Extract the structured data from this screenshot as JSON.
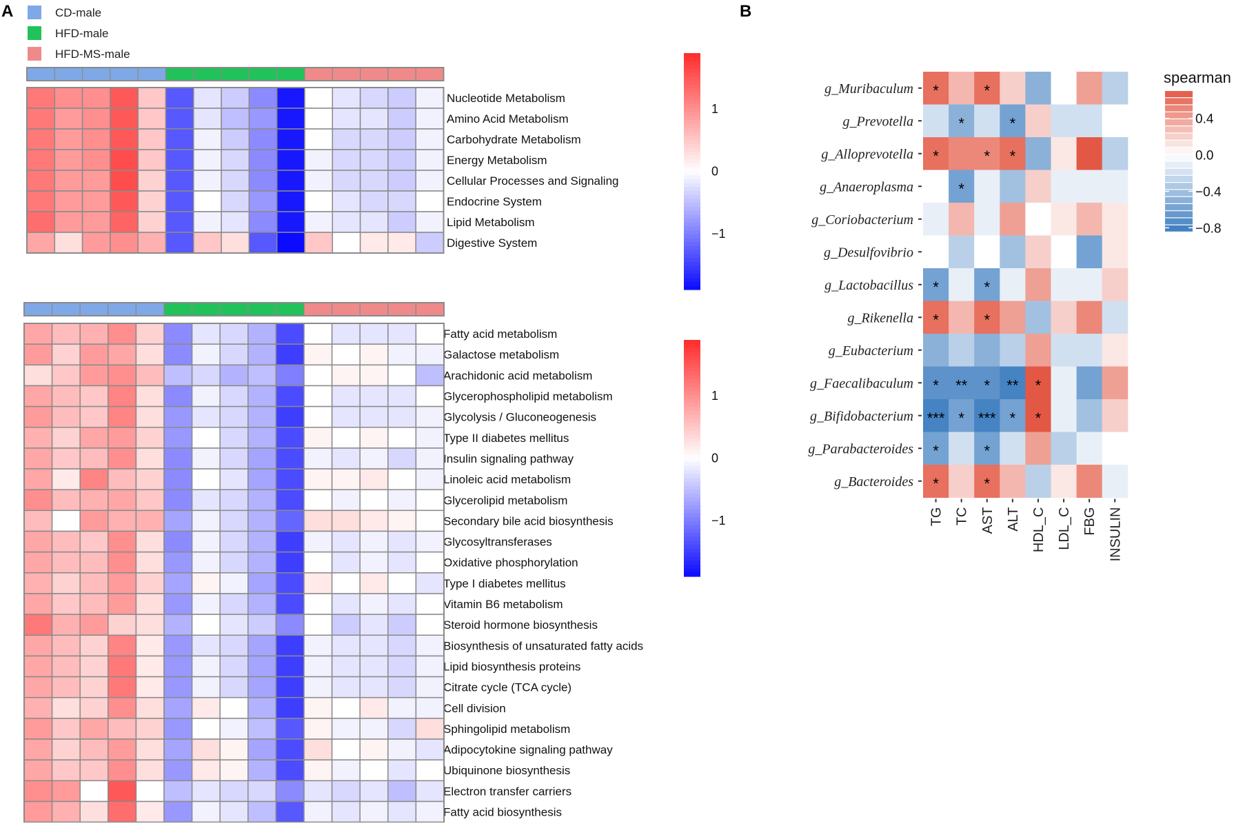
{
  "panel_labels": {
    "a": "A",
    "b": "B"
  },
  "colors": {
    "low": "#0b0bff",
    "mid": "#ffffff",
    "high": "#ff2b2b",
    "group_cd": "#7fa8e6",
    "group_hfd": "#22c25a",
    "group_hfdms": "#f08a8a",
    "cell_border": "#8a8a8a",
    "corr_neg": "#3a7bbf",
    "corr_pos": "#e35844"
  },
  "legend": [
    {
      "label": "CD-male",
      "color": "#7fa8e6"
    },
    {
      "label": "HFD-male",
      "color": "#22c25a"
    },
    {
      "label": "HFD-MS-male",
      "color": "#f08a8a"
    }
  ],
  "chart_data": [
    {
      "id": "heatmap_top",
      "type": "heatmap",
      "title": "",
      "column_groups": [
        "CD-male",
        "CD-male",
        "CD-male",
        "CD-male",
        "CD-male",
        "HFD-male",
        "HFD-male",
        "HFD-male",
        "HFD-male",
        "HFD-male",
        "HFD-MS-male",
        "HFD-MS-male",
        "HFD-MS-male",
        "HFD-MS-male",
        "HFD-MS-male"
      ],
      "rows": [
        "Nucleotide Metabolism",
        "Amino Acid Metabolism",
        "Carbohydrate Metabolism",
        "Energy Metabolism",
        "Cellular Processes and Signaling",
        "Endocrine System",
        "Lipid Metabolism",
        "Digestive System"
      ],
      "values": [
        [
          1.2,
          1.0,
          1.0,
          1.5,
          0.5,
          -1.3,
          -0.2,
          -0.4,
          -0.9,
          -1.8,
          0.0,
          -0.2,
          -0.3,
          -0.4,
          -0.1
        ],
        [
          1.2,
          0.9,
          1.0,
          1.5,
          0.5,
          -1.3,
          -0.2,
          -0.5,
          -0.8,
          -1.8,
          0.0,
          -0.2,
          -0.2,
          -0.4,
          -0.1
        ],
        [
          1.2,
          0.9,
          1.0,
          1.5,
          0.5,
          -1.3,
          -0.1,
          -0.4,
          -0.9,
          -1.8,
          0.0,
          -0.3,
          -0.3,
          -0.4,
          -0.1
        ],
        [
          1.2,
          0.9,
          1.0,
          1.6,
          0.5,
          -1.3,
          -0.1,
          -0.3,
          -0.9,
          -1.8,
          -0.1,
          -0.3,
          -0.3,
          -0.4,
          -0.1
        ],
        [
          1.2,
          0.9,
          0.9,
          1.6,
          0.4,
          -1.3,
          -0.1,
          -0.3,
          -0.9,
          -1.8,
          -0.1,
          -0.3,
          -0.3,
          -0.4,
          -0.1
        ],
        [
          1.2,
          0.9,
          0.9,
          1.5,
          0.4,
          -1.3,
          0.0,
          -0.3,
          -0.8,
          -1.8,
          0.0,
          -0.2,
          -0.3,
          -0.3,
          0.0
        ],
        [
          1.3,
          0.9,
          0.9,
          1.4,
          0.4,
          -1.3,
          -0.1,
          -0.2,
          -0.9,
          -1.8,
          -0.1,
          -0.2,
          -0.2,
          -0.4,
          -0.1
        ],
        [
          0.8,
          0.3,
          0.9,
          1.0,
          0.7,
          -1.3,
          0.5,
          0.3,
          -1.3,
          -1.9,
          0.5,
          0.0,
          0.2,
          0.2,
          -0.4
        ]
      ],
      "colorbar": {
        "ticks": [
          1,
          0,
          -1
        ],
        "tick_labels": [
          "1",
          "0",
          "−1"
        ],
        "range": [
          -1.9,
          1.9
        ]
      }
    },
    {
      "id": "heatmap_bottom",
      "type": "heatmap",
      "title": "",
      "column_groups": [
        "CD-male",
        "CD-male",
        "CD-male",
        "CD-male",
        "CD-male",
        "HFD-male",
        "HFD-male",
        "HFD-male",
        "HFD-male",
        "HFD-male",
        "HFD-MS-male",
        "HFD-MS-male",
        "HFD-MS-male",
        "HFD-MS-male",
        "HFD-MS-male"
      ],
      "rows": [
        "Fatty acid metabolism",
        "Galactose metabolism",
        "Arachidonic acid metabolism",
        "Glycerophospholipid metabolism",
        "Glycolysis / Gluconeogenesis",
        "Type II diabetes mellitus",
        "Insulin signaling pathway",
        "Linoleic acid metabolism",
        "Glycerolipid metabolism",
        "Secondary bile acid biosynthesis",
        "Glycosyltransferases",
        "Oxidative phosphorylation",
        "Type I diabetes mellitus",
        "Vitamin B6 metabolism",
        "Steroid hormone biosynthesis",
        "Biosynthesis of unsaturated fatty acids",
        "Lipid biosynthesis proteins",
        "Citrate cycle (TCA cycle)",
        "Cell division",
        "Sphingolipid metabolism",
        "Adipocytokine signaling pathway",
        "Ubiquinone biosynthesis",
        "Electron transfer carriers",
        "Fatty acid biosynthesis"
      ],
      "values": [
        [
          0.8,
          0.6,
          0.7,
          1.0,
          0.4,
          -0.9,
          -0.2,
          -0.3,
          -0.6,
          -1.4,
          0.0,
          -0.2,
          -0.2,
          -0.2,
          0.0
        ],
        [
          0.9,
          0.4,
          0.9,
          0.8,
          0.3,
          -0.9,
          -0.1,
          -0.3,
          -0.6,
          -1.5,
          0.1,
          0.0,
          0.1,
          -0.1,
          -0.1
        ],
        [
          0.3,
          0.5,
          0.9,
          1.0,
          0.6,
          -0.5,
          -0.3,
          -0.6,
          -0.5,
          -1.0,
          0.0,
          0.1,
          0.1,
          0.0,
          -0.5
        ],
        [
          0.8,
          0.6,
          0.5,
          1.1,
          0.3,
          -0.9,
          -0.1,
          -0.3,
          -0.6,
          -1.4,
          0.0,
          -0.2,
          -0.2,
          -0.2,
          0.0
        ],
        [
          0.9,
          0.6,
          0.5,
          1.1,
          0.3,
          -0.8,
          -0.2,
          -0.3,
          -0.6,
          -1.5,
          0.0,
          -0.2,
          -0.2,
          -0.2,
          -0.1
        ],
        [
          0.7,
          0.4,
          0.8,
          0.9,
          0.4,
          -0.8,
          0.0,
          -0.3,
          -0.6,
          -1.4,
          0.1,
          0.0,
          0.1,
          0.0,
          -0.1
        ],
        [
          0.8,
          0.5,
          0.6,
          1.0,
          0.3,
          -0.9,
          -0.1,
          -0.3,
          -0.7,
          -1.4,
          -0.1,
          -0.2,
          -0.1,
          -0.3,
          -0.1
        ],
        [
          0.8,
          0.2,
          1.1,
          0.6,
          0.4,
          -0.9,
          0.0,
          -0.2,
          -0.7,
          -1.4,
          0.1,
          0.1,
          0.2,
          0.0,
          -0.1
        ],
        [
          1.0,
          0.6,
          0.7,
          0.8,
          0.5,
          -0.9,
          -0.2,
          -0.3,
          -0.6,
          -1.4,
          0.0,
          -0.1,
          0.0,
          -0.1,
          0.0
        ],
        [
          0.6,
          0.0,
          0.9,
          0.7,
          0.7,
          -0.7,
          -0.1,
          -0.3,
          -0.6,
          -1.2,
          0.3,
          0.3,
          0.2,
          0.1,
          0.0
        ],
        [
          0.8,
          0.6,
          0.5,
          1.0,
          0.3,
          -0.9,
          -0.1,
          -0.3,
          -0.6,
          -1.5,
          -0.1,
          -0.2,
          -0.1,
          -0.2,
          -0.1
        ],
        [
          0.8,
          0.6,
          0.6,
          1.0,
          0.3,
          -0.8,
          -0.1,
          -0.3,
          -0.6,
          -1.5,
          0.0,
          -0.2,
          -0.1,
          -0.2,
          0.0
        ],
        [
          0.7,
          0.4,
          0.6,
          0.9,
          0.4,
          -0.7,
          0.1,
          -0.1,
          -0.7,
          -1.4,
          0.2,
          0.0,
          0.2,
          0.0,
          -0.2
        ],
        [
          0.8,
          0.5,
          0.6,
          0.9,
          0.3,
          -0.8,
          -0.1,
          -0.3,
          -0.6,
          -1.4,
          0.0,
          -0.2,
          -0.1,
          -0.2,
          0.0
        ],
        [
          1.2,
          0.7,
          0.9,
          0.4,
          0.3,
          -0.6,
          0.0,
          -0.2,
          -0.4,
          -0.9,
          0.0,
          -0.4,
          -0.2,
          -0.4,
          0.0
        ],
        [
          0.8,
          0.6,
          0.4,
          1.1,
          0.2,
          -0.8,
          -0.2,
          -0.3,
          -0.7,
          -1.5,
          -0.1,
          -0.2,
          -0.2,
          -0.3,
          -0.1
        ],
        [
          0.8,
          0.6,
          0.4,
          1.2,
          0.2,
          -0.8,
          -0.1,
          -0.3,
          -0.7,
          -1.5,
          -0.1,
          -0.2,
          -0.2,
          -0.3,
          -0.1
        ],
        [
          0.8,
          0.6,
          0.4,
          1.2,
          0.2,
          -0.8,
          -0.1,
          -0.3,
          -0.7,
          -1.5,
          -0.1,
          -0.2,
          -0.2,
          -0.3,
          -0.1
        ],
        [
          0.7,
          0.3,
          0.4,
          1.0,
          0.3,
          -0.7,
          0.2,
          0.0,
          -0.6,
          -1.5,
          0.1,
          0.0,
          0.2,
          -0.1,
          -0.1
        ],
        [
          0.9,
          0.5,
          0.8,
          0.6,
          0.4,
          -0.8,
          0.0,
          -0.1,
          -0.5,
          -1.3,
          0.1,
          -0.1,
          -0.1,
          -0.3,
          0.3
        ],
        [
          0.8,
          0.4,
          0.6,
          0.9,
          0.3,
          -0.7,
          0.3,
          0.1,
          -0.7,
          -1.4,
          0.3,
          0.0,
          0.1,
          -0.1,
          -0.2
        ],
        [
          0.8,
          0.5,
          0.5,
          1.0,
          0.3,
          -0.8,
          0.2,
          0.1,
          -0.6,
          -1.4,
          0.1,
          -0.1,
          0.0,
          -0.2,
          0.0
        ],
        [
          1.0,
          0.9,
          0.0,
          1.5,
          0.0,
          -0.5,
          -0.2,
          -0.3,
          -0.3,
          -0.9,
          -0.2,
          -0.3,
          -0.2,
          -0.5,
          -0.2
        ],
        [
          0.9,
          0.7,
          0.3,
          1.3,
          0.2,
          -0.8,
          -0.1,
          -0.2,
          -0.5,
          -1.3,
          -0.1,
          -0.2,
          -0.1,
          -0.2,
          -0.1
        ]
      ],
      "colorbar": {
        "ticks": [
          1,
          0,
          -1
        ],
        "tick_labels": [
          "1",
          "0",
          "−1"
        ],
        "range": [
          -1.9,
          1.9
        ]
      }
    },
    {
      "id": "correlation_heatmap",
      "type": "heatmap",
      "title": "",
      "legend_title": "spearman",
      "x": [
        "TG",
        "TC",
        "AST",
        "ALT",
        "HDL_C",
        "LDL_C",
        "FBG",
        "INSULIN"
      ],
      "y": [
        "g_Muribaculum",
        "g_Prevotella",
        "g_Alloprevotella",
        "g_Anaeroplasma",
        "g_Coriobacterium",
        "g_Desulfovibrio",
        "g_Lactobacillus",
        "g_Rikenella",
        "g_Eubacterium",
        "g_Faecalibaculum",
        "g_Bifidobacterium",
        "g_Parabacteroides",
        "g_Bacteroides"
      ],
      "values": [
        [
          0.6,
          0.3,
          0.6,
          0.2,
          -0.5,
          0.0,
          0.4,
          -0.3
        ],
        [
          -0.2,
          -0.5,
          -0.2,
          -0.6,
          0.2,
          -0.2,
          -0.2,
          0.0
        ],
        [
          0.6,
          0.5,
          0.5,
          0.6,
          -0.5,
          0.1,
          0.7,
          -0.3
        ],
        [
          0.0,
          -0.6,
          -0.1,
          -0.4,
          0.2,
          -0.1,
          -0.1,
          -0.1
        ],
        [
          -0.1,
          0.3,
          -0.1,
          0.4,
          0.0,
          0.1,
          0.3,
          0.1
        ],
        [
          0.0,
          -0.3,
          0.0,
          -0.4,
          0.2,
          0.0,
          -0.6,
          0.1
        ],
        [
          -0.6,
          -0.1,
          -0.6,
          -0.1,
          0.4,
          -0.1,
          -0.1,
          0.2
        ],
        [
          0.6,
          0.3,
          0.6,
          0.4,
          -0.4,
          0.2,
          0.5,
          -0.2
        ],
        [
          -0.5,
          -0.3,
          -0.5,
          -0.3,
          0.4,
          -0.2,
          -0.2,
          0.1
        ],
        [
          -0.7,
          -0.7,
          -0.7,
          -0.8,
          0.7,
          -0.1,
          -0.6,
          0.4
        ],
        [
          -0.8,
          -0.6,
          -0.8,
          -0.6,
          0.8,
          -0.1,
          -0.4,
          0.2
        ],
        [
          -0.6,
          -0.2,
          -0.6,
          -0.2,
          0.4,
          -0.3,
          -0.1,
          0.0
        ],
        [
          0.6,
          0.2,
          0.6,
          0.3,
          -0.3,
          0.1,
          0.5,
          -0.1
        ]
      ],
      "significance": [
        [
          "*",
          "",
          "*",
          "",
          "",
          "",
          "",
          ""
        ],
        [
          "",
          "*",
          "",
          "*",
          "",
          "",
          "",
          ""
        ],
        [
          "*",
          "",
          "*",
          "*",
          "",
          "",
          "",
          ""
        ],
        [
          "",
          "*",
          "",
          "",
          "",
          "",
          "",
          ""
        ],
        [
          "",
          "",
          "",
          "",
          "",
          "",
          "",
          ""
        ],
        [
          "",
          "",
          "",
          "",
          "",
          "",
          "",
          ""
        ],
        [
          "*",
          "",
          "*",
          "",
          "",
          "",
          "",
          ""
        ],
        [
          "*",
          "",
          "*",
          "",
          "",
          "",
          "",
          ""
        ],
        [
          "",
          "",
          "",
          "",
          "",
          "",
          "",
          ""
        ],
        [
          "*",
          "**",
          "*",
          "**",
          "*",
          "",
          "",
          ""
        ],
        [
          "***",
          "*",
          "***",
          "*",
          "*",
          "",
          "",
          ""
        ],
        [
          "*",
          "",
          "*",
          "",
          "",
          "",
          "",
          ""
        ],
        [
          "*",
          "",
          "*",
          "",
          "",
          "",
          "",
          ""
        ]
      ],
      "colorbar": {
        "ticks": [
          0.4,
          0.0,
          -0.4,
          -0.8
        ],
        "tick_labels": [
          "0.4",
          "0.0",
          "−0.4",
          "−0.8"
        ],
        "range": [
          -0.85,
          0.7
        ]
      }
    }
  ]
}
